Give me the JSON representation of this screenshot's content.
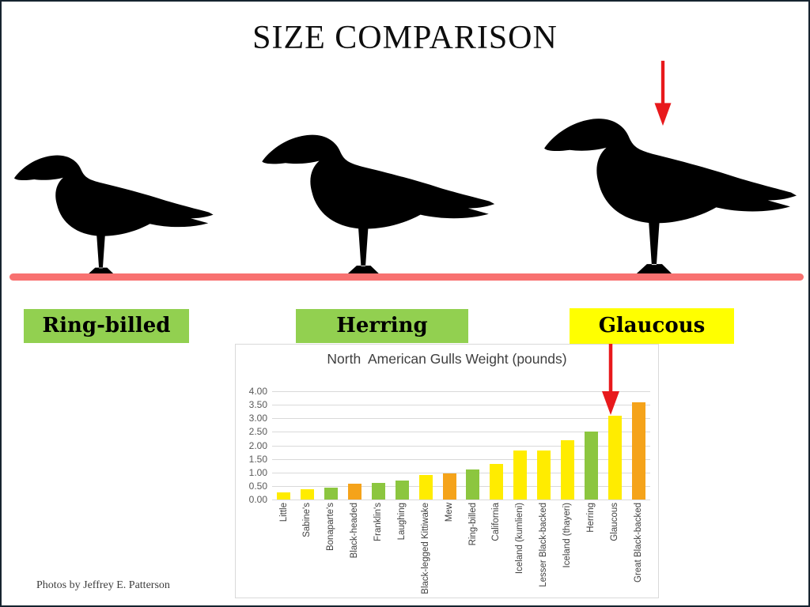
{
  "slide": {
    "title": "SIZE COMPARISON",
    "credit": "Photos by Jeffrey E. Patterson",
    "border_color": "#16242f",
    "ground_line_color": "#f87170",
    "arrow_color": "#e8191c",
    "silhouette_color": "#000000",
    "bird_labels": [
      {
        "name": "Ring-billed",
        "bg": "#92d050"
      },
      {
        "name": "Herring",
        "bg": "#92d050"
      },
      {
        "name": "Glaucous",
        "bg": "#ffff00"
      }
    ],
    "icons": {
      "arrow_top": "down-arrow-icon pointing at Glaucous gull silhouette",
      "arrow_chart": "down-arrow-icon pointing at Glaucous bar"
    }
  },
  "chart_data": {
    "type": "bar",
    "title": "North  American Gulls Weight (pounds)",
    "xlabel": "",
    "ylabel": "",
    "ylim": [
      0,
      4
    ],
    "yticks": [
      "4.00",
      "3.50",
      "3.00",
      "2.50",
      "2.00",
      "1.50",
      "1.00",
      "0.50",
      "0.00"
    ],
    "grid": true,
    "legend": false,
    "categories": [
      "Little",
      "Sabine's",
      "Bonaparte's",
      "Black-headed",
      "Franklin's",
      "Laughing",
      "Black-legged Kittiwake",
      "Mew",
      "Ring-billed",
      "California",
      "Iceland (kumlieni)",
      "Lesser Black-backed",
      "Iceland (thayeri)",
      "Herring",
      "Glaucous",
      "Great Black-backed"
    ],
    "values": [
      0.27,
      0.37,
      0.45,
      0.57,
      0.62,
      0.7,
      0.9,
      0.95,
      1.1,
      1.3,
      1.8,
      1.8,
      2.2,
      2.5,
      3.1,
      3.6
    ],
    "bar_colors": [
      "yellow",
      "yellow",
      "green",
      "orange",
      "green",
      "green",
      "yellow",
      "orange",
      "green",
      "yellow",
      "yellow",
      "yellow",
      "yellow",
      "green",
      "yellow",
      "orange"
    ],
    "color_map": {
      "yellow": "#ffec00",
      "green": "#8cc63f",
      "orange": "#f5a31a"
    },
    "arrow_target": "Glaucous"
  }
}
